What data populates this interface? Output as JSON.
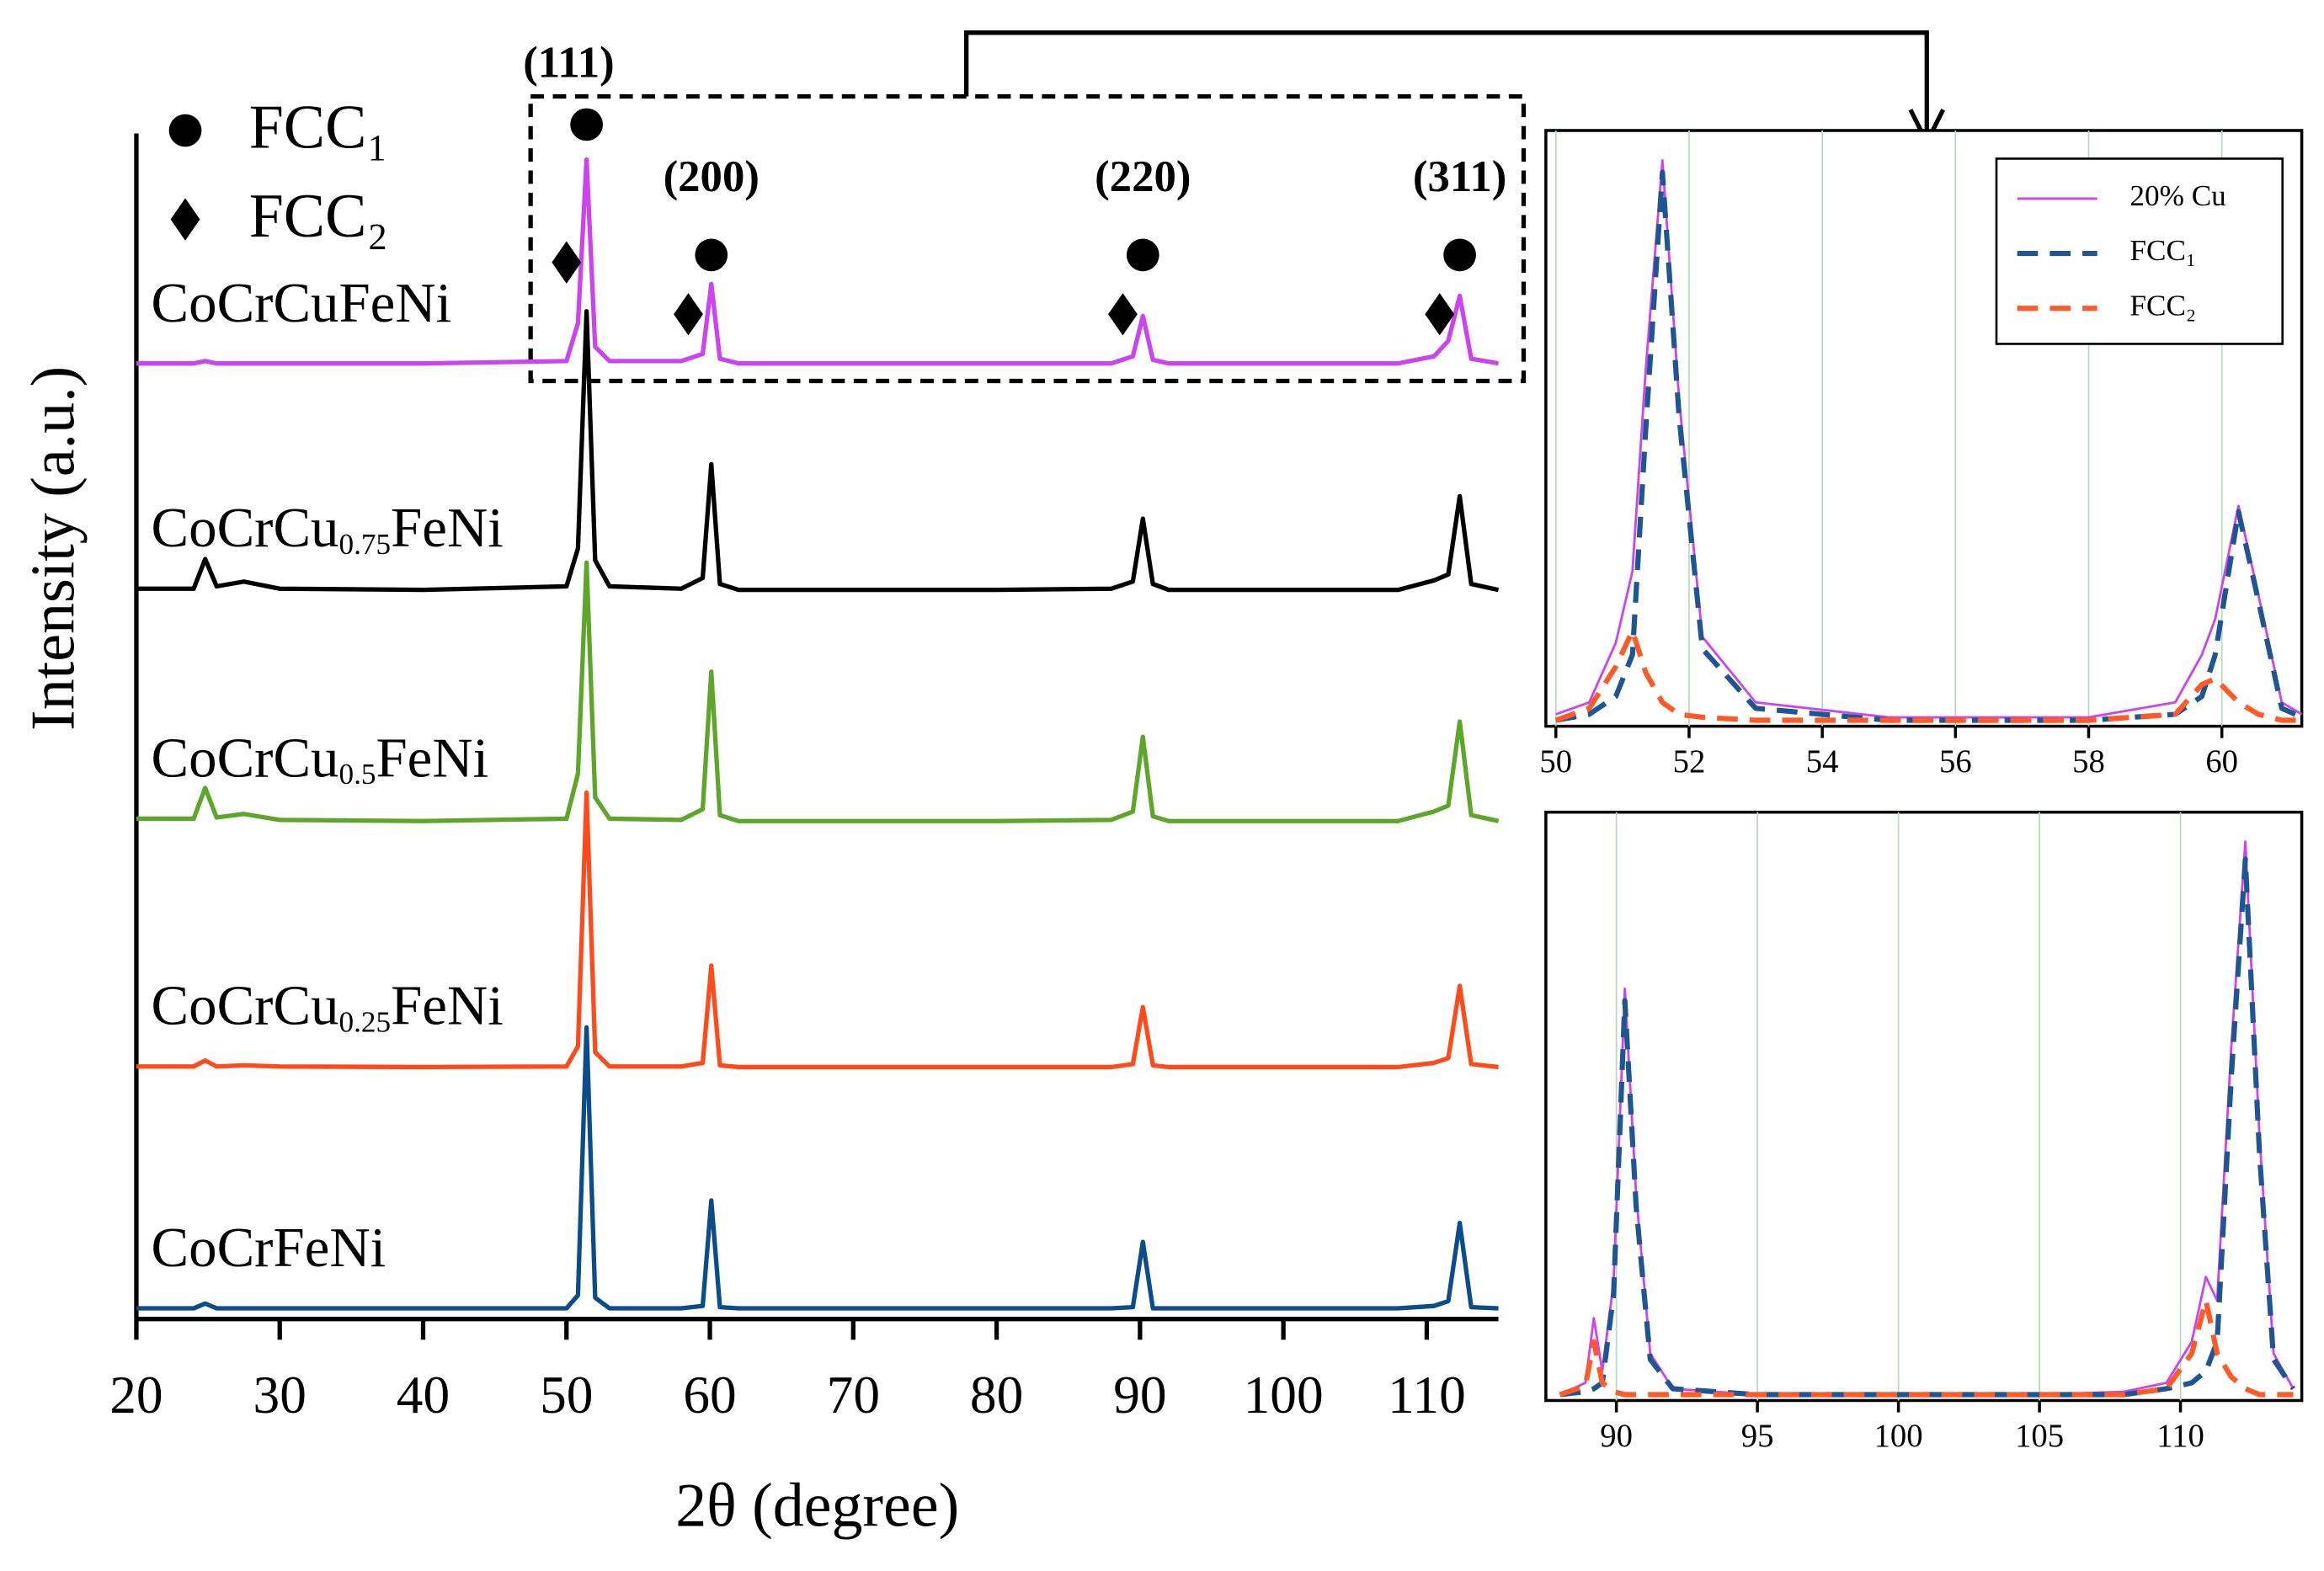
{
  "chart_data": [
    {
      "type": "line",
      "x_label": "2θ (degree)",
      "y_label": "Intensity (a.u.)",
      "xlim": [
        20,
        115
      ],
      "xticks": [
        20,
        30,
        40,
        50,
        60,
        70,
        80,
        90,
        100,
        110
      ],
      "ylim": [
        0,
        100
      ],
      "x": [
        20,
        24,
        24.8,
        25.6,
        27.5,
        30,
        40,
        50,
        50.8,
        51.4,
        52,
        53,
        58,
        59.5,
        60.1,
        60.7,
        62,
        70,
        80,
        88,
        89.5,
        90.2,
        90.9,
        92,
        100,
        108,
        110.5,
        111.5,
        112.3,
        113.1,
        115
      ],
      "series": [
        {
          "name": "CoCrCuFeNi",
          "color": "#cc44ee",
          "values": [
            80.6,
            80.6,
            80.8,
            80.6,
            80.6,
            80.6,
            80.6,
            80.8,
            84,
            97.8,
            82,
            80.8,
            80.8,
            81.4,
            87.3,
            81,
            80.6,
            80.6,
            80.6,
            80.6,
            81.2,
            84.6,
            80.9,
            80.6,
            80.6,
            80.6,
            81.2,
            82.5,
            86.3,
            81,
            80.6
          ]
        },
        {
          "name": "CoCrCu0.75FeNi",
          "color": "#000000",
          "values": [
            61.6,
            61.6,
            64.1,
            61.8,
            62.2,
            61.6,
            61.5,
            61.8,
            65,
            85,
            64,
            61.8,
            61.6,
            62.5,
            72.1,
            62,
            61.5,
            61.5,
            61.5,
            61.6,
            62.2,
            67.5,
            62,
            61.5,
            61.5,
            61.5,
            62.3,
            62.8,
            69.4,
            62,
            61.5
          ]
        },
        {
          "name": "CoCrCu0.5FeNi",
          "color": "#5ea629",
          "values": [
            42.2,
            42.2,
            44.8,
            42.3,
            42.6,
            42.1,
            42,
            42.2,
            46,
            63.8,
            44,
            42.2,
            42.1,
            43,
            54.6,
            42.5,
            42,
            42,
            42,
            42.1,
            42.8,
            49.1,
            42.4,
            42,
            42,
            42,
            42.8,
            43.3,
            50.4,
            42.5,
            42
          ]
        },
        {
          "name": "CoCrCu0.25FeNi",
          "color": "#ff4a1c",
          "values": [
            21.3,
            21.3,
            21.8,
            21.3,
            21.4,
            21.3,
            21.25,
            21.3,
            23,
            44.4,
            22.5,
            21.3,
            21.3,
            21.6,
            29.8,
            21.4,
            21.25,
            21.25,
            21.25,
            21.25,
            21.5,
            26.3,
            21.4,
            21.25,
            21.25,
            21.25,
            21.6,
            22,
            28.1,
            21.5,
            21.25
          ]
        },
        {
          "name": "CoCrFeNi",
          "color": "#0b4c8c",
          "values": [
            0.9,
            0.9,
            1.3,
            0.9,
            0.9,
            0.9,
            0.9,
            0.9,
            2,
            24.6,
            1.8,
            0.9,
            0.9,
            1.1,
            10,
            1,
            0.9,
            0.9,
            0.9,
            0.9,
            1,
            6.5,
            0.9,
            0.9,
            0.9,
            0.9,
            1.1,
            1.5,
            8.1,
            1,
            0.9
          ]
        }
      ],
      "annotations": [
        {
          "text": "(111)",
          "x": 51.4
        },
        {
          "text": "(200)",
          "x": 60.1
        },
        {
          "text": "(220)",
          "x": 90.2
        },
        {
          "text": "(311)",
          "x": 112.3
        }
      ],
      "phase_markers": [
        {
          "name": "FCC₁",
          "symbol": "circle",
          "x": [
            51.4,
            60.1,
            90.2,
            112.3
          ]
        },
        {
          "name": "FCC₂",
          "symbol": "diamond",
          "x": [
            50.0,
            58.5,
            88.8,
            110.9
          ]
        }
      ]
    },
    {
      "type": "line",
      "xlim": [
        49.85,
        61.2
      ],
      "xticks": [
        50,
        52,
        54,
        56,
        58,
        60
      ],
      "ylim": [
        0,
        100
      ],
      "grid": true,
      "legend": "upper right",
      "x": [
        50,
        50.5,
        50.9,
        51.15,
        51.35,
        51.6,
        51.85,
        52.2,
        53,
        55,
        58,
        59.3,
        59.7,
        59.9,
        60.25,
        60.55,
        60.9,
        61.2
      ],
      "series": [
        {
          "name": "20% Cu",
          "color": "#cc44ee",
          "line_style": "solid",
          "values": [
            2,
            4,
            14,
            26,
            60,
            95,
            55,
            15,
            4,
            1.5,
            1.5,
            4,
            12,
            18,
            37,
            22,
            4,
            2
          ]
        },
        {
          "name": "FCC₁",
          "color": "#1f5591",
          "line_style": "dashed",
          "values": [
            1,
            2,
            5,
            12,
            50,
            93,
            52,
            13,
            3,
            1,
            1,
            2,
            5,
            12,
            36,
            21,
            3,
            1.5
          ]
        },
        {
          "name": "FCC₂",
          "color": "#ff5a28",
          "line_style": "dashed",
          "values": [
            1,
            3,
            10,
            16,
            9,
            4,
            2,
            1.5,
            1,
            1,
            1,
            2,
            7,
            8,
            4,
            2,
            1,
            1
          ]
        }
      ]
    },
    {
      "type": "line",
      "xlim": [
        87.5,
        114.3
      ],
      "xticks": [
        90,
        95,
        100,
        105,
        110
      ],
      "ylim": [
        0,
        100
      ],
      "grid": true,
      "x": [
        88,
        88.9,
        89.2,
        89.5,
        89.9,
        90.3,
        90.7,
        91.2,
        92,
        95,
        100,
        105,
        108,
        109.5,
        110.4,
        110.9,
        111.3,
        111.8,
        112.3,
        112.8,
        113.3,
        114
      ],
      "series": [
        {
          "name": "20% Cu",
          "color": "#cc44ee",
          "line_style": "solid",
          "values": [
            1,
            3,
            14,
            5,
            20,
            70,
            35,
            8,
            2,
            1,
            1,
            1,
            1.5,
            3,
            10,
            21,
            17,
            60,
            95,
            45,
            8,
            2
          ]
        },
        {
          "name": "FCC₁",
          "color": "#1f5591",
          "line_style": "dashed",
          "values": [
            1,
            1.5,
            2,
            3,
            18,
            68,
            33,
            7,
            2,
            1,
            1,
            1,
            1,
            2,
            3,
            5,
            10,
            55,
            92,
            42,
            7,
            2
          ]
        },
        {
          "name": "FCC₂",
          "color": "#ff5a28",
          "line_style": "dashed",
          "values": [
            1,
            2.5,
            10,
            3,
            1.5,
            1,
            1,
            1,
            1,
            1,
            1,
            1,
            1,
            2,
            8,
            17,
            8,
            4,
            2,
            1,
            1,
            1
          ]
        }
      ]
    }
  ]
}
